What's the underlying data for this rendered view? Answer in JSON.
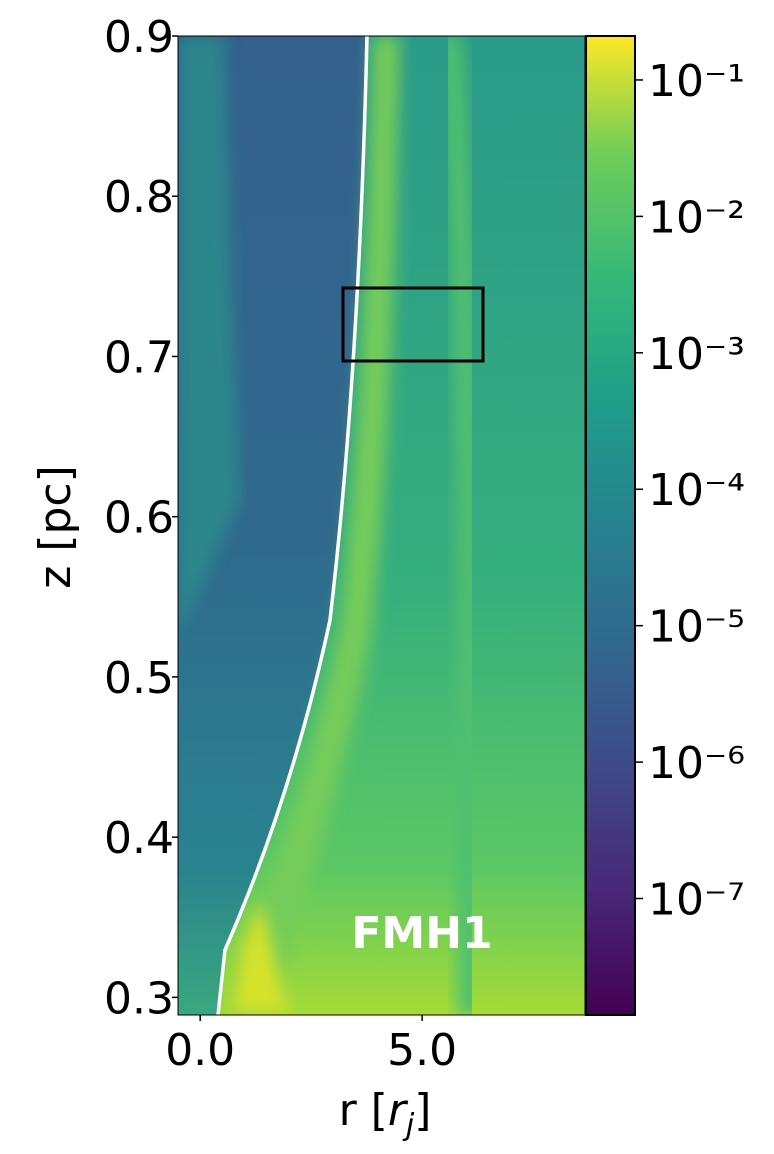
{
  "chart_data": {
    "type": "heatmap",
    "xlabel": [
      "r [",
      "r",
      "j",
      "]"
    ],
    "ylabel": "z [pc]",
    "xlim": [
      -0.5,
      8.67
    ],
    "xticks": [
      {
        "value": 0,
        "label": "0.0"
      },
      {
        "value": 5,
        "label": "5.0"
      }
    ],
    "ylim": [
      0.289,
      0.9
    ],
    "yticks": [
      0.3,
      0.4,
      0.5,
      0.6,
      0.7,
      0.8,
      0.9
    ],
    "colorbar": {
      "log_scale": true,
      "clim": [
        1.4e-08,
        0.21
      ],
      "ticks": [
        {
          "value": 0.1,
          "label": "10⁻¹"
        },
        {
          "value": 0.01,
          "label": "10⁻²"
        },
        {
          "value": 0.001,
          "label": "10⁻³"
        },
        {
          "value": 0.0001,
          "label": "10⁻⁴"
        },
        {
          "value": 1e-05,
          "label": "10⁻⁵"
        },
        {
          "value": 1e-06,
          "label": "10⁻⁶"
        },
        {
          "value": 1e-07,
          "label": "10⁻⁷"
        }
      ]
    },
    "annotation": "FMH1"
  }
}
